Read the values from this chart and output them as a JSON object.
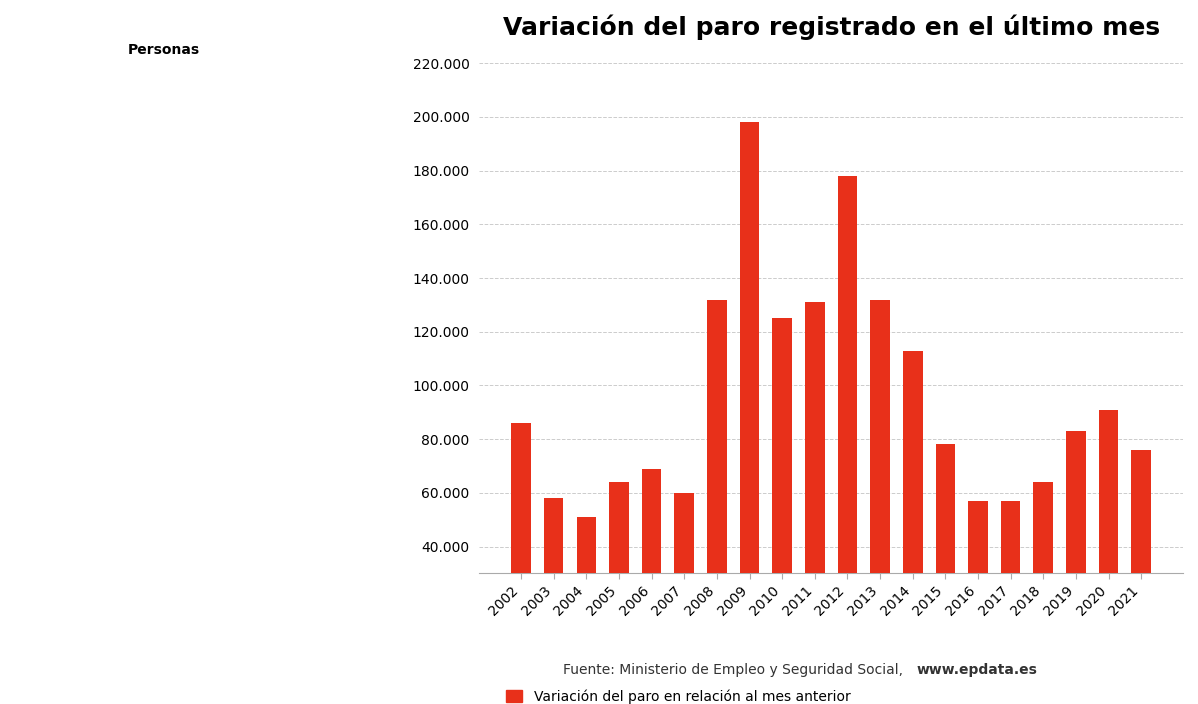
{
  "title": "Variación del paro registrado en el último mes",
  "ylabel": "Personas",
  "categories": [
    "2002",
    "2003",
    "2004",
    "2005",
    "2006",
    "2007",
    "2008",
    "2009",
    "2010",
    "2011",
    "2012",
    "2013",
    "2014",
    "2015",
    "2016",
    "2017",
    "2018",
    "2019",
    "2020",
    "2021"
  ],
  "values": [
    86000,
    58000,
    51000,
    64000,
    69000,
    60000,
    132000,
    198000,
    125000,
    131000,
    178000,
    132000,
    113000,
    78000,
    57000,
    57000,
    64000,
    83000,
    91000,
    76000
  ],
  "bar_color": "#e8301a",
  "ylim_min": 30000,
  "ylim_max": 220000,
  "yticks": [
    40000,
    60000,
    80000,
    100000,
    120000,
    140000,
    160000,
    180000,
    200000,
    220000
  ],
  "background_color": "#ffffff",
  "grid_color": "#cccccc",
  "legend_label": "Variación del paro en relación al mes anterior",
  "source_text": "Fuente: Ministerio de Empleo y Seguridad Social, ",
  "source_bold": "www.epdata.es",
  "title_fontsize": 18,
  "axis_label_fontsize": 10,
  "tick_fontsize": 10,
  "legend_fontsize": 10
}
